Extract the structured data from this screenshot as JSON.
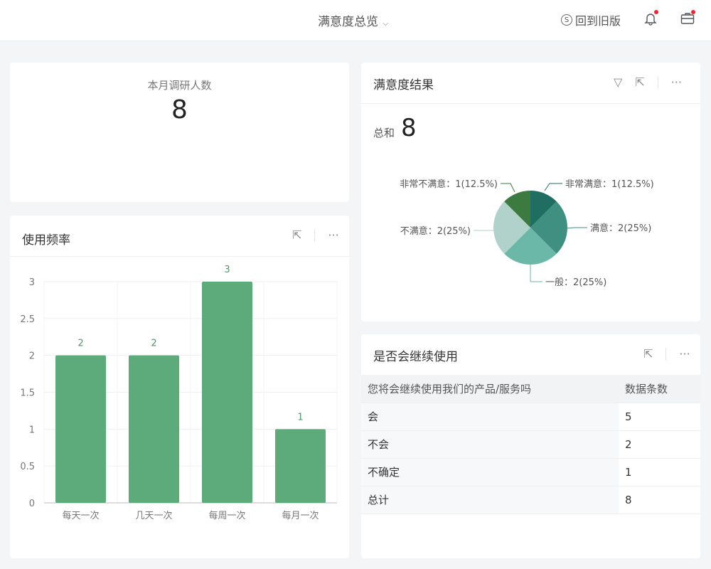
{
  "header": {
    "title": "满意度总览",
    "back_old": "回到旧版",
    "icons": [
      "switch-icon",
      "bell-icon",
      "briefcase-icon"
    ]
  },
  "kpi": {
    "label": "本月调研人数",
    "value": "8"
  },
  "pie_card": {
    "title": "满意度结果",
    "sum_label": "总和",
    "sum_value": "8"
  },
  "bar_card": {
    "title": "使用频率"
  },
  "table_card": {
    "title": "是否会继续使用",
    "columns": [
      "您将会继续使用我们的产品/服务吗",
      "数据条数"
    ],
    "rows": [
      [
        "会",
        "5"
      ],
      [
        "不会",
        "2"
      ],
      [
        "不确定",
        "1"
      ],
      [
        "总计",
        "8"
      ]
    ]
  },
  "chart_data": [
    {
      "type": "bar",
      "categories": [
        "每天一次",
        "几天一次",
        "每周一次",
        "每月一次"
      ],
      "values": [
        2,
        2,
        3,
        1
      ],
      "ylim": [
        0,
        3
      ],
      "yticks": [
        "0",
        "0.5",
        "1",
        "1.5",
        "2",
        "2.5",
        "3"
      ],
      "color": "#5daa7b",
      "grid": true
    },
    {
      "type": "pie",
      "labels": [
        "非常满意",
        "满意",
        "一般",
        "不满意",
        "非常不满意"
      ],
      "values": [
        1,
        2,
        2,
        2,
        1
      ],
      "label_texts": [
        "非常满意：1(12.5%)",
        "满意：2(25%)",
        "一般：2(25%)",
        "不满意：2(25%)",
        "非常不满意：1(12.5%)"
      ],
      "colors": [
        "#1f6e61",
        "#3f9080",
        "#6bb8a8",
        "#b0d2cb",
        "#3c7a40"
      ]
    }
  ]
}
